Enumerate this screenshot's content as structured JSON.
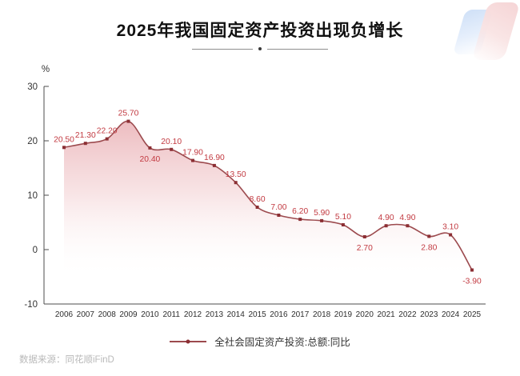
{
  "page": {
    "title": "2025年我国固定资产投资出现负增长",
    "source": "数据来源：同花顺iFinD"
  },
  "chart_data": {
    "type": "area",
    "title": "2025年我国固定资产投资出现负增长",
    "series_name": "全社会固定资产投资:总额:同比",
    "categories": [
      "2006",
      "2007",
      "2008",
      "2009",
      "2010",
      "2011",
      "2012",
      "2013",
      "2014",
      "2015",
      "2016",
      "2017",
      "2018",
      "2019",
      "2020",
      "2021",
      "2022",
      "2023",
      "2024",
      "2025"
    ],
    "values": [
      20.5,
      21.3,
      22.2,
      25.7,
      20.4,
      20.1,
      17.9,
      16.9,
      13.5,
      8.6,
      7.0,
      6.2,
      5.9,
      5.1,
      2.7,
      4.9,
      4.9,
      2.8,
      3.1,
      -3.9
    ],
    "label_below_indices": [
      4,
      14,
      17,
      19
    ],
    "xlabel": "",
    "ylabel": "%",
    "yticks": [
      30,
      20,
      10,
      0,
      -10
    ],
    "ylim": [
      -10,
      30
    ],
    "grid": "off",
    "legend_position": "bottom",
    "colors": {
      "line": "#9c4a4e",
      "marker": "#8c2f34",
      "data_label": "#c23a41",
      "axis": "#4d4d4d",
      "tick_label": "#333333",
      "fill_top": "#e8abb0",
      "fill_mid": "#f5d8da"
    }
  }
}
